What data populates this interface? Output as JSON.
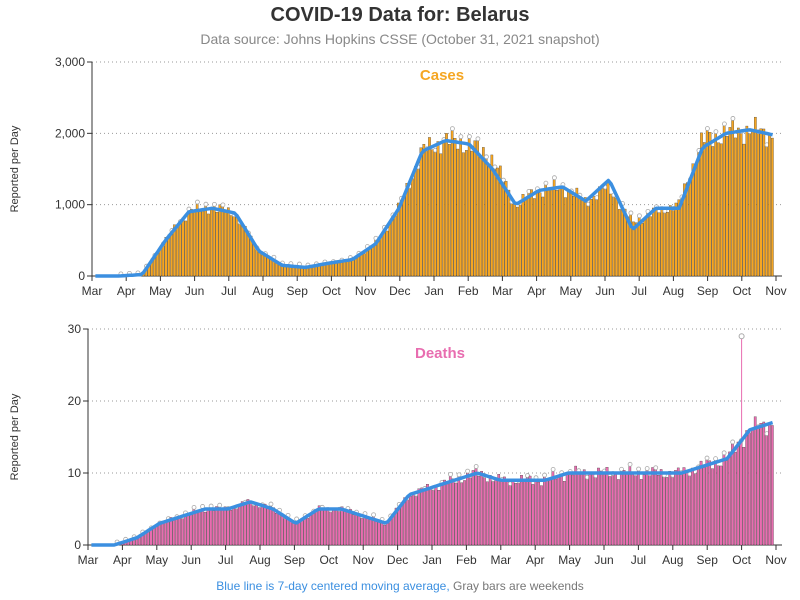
{
  "title": "COVID-19 Data for: Belarus",
  "subtitle": "Data source: Johns Hopkins CSSE (October 31, 2021 snapshot)",
  "footnote": {
    "blue_text": "Blue line is 7-day centered moving average,",
    "gray_text": "Gray bars are weekends"
  },
  "colors": {
    "cases_bar": "#f5a623",
    "deaths_bar": "#e86db0",
    "moving_avg": "#3b8fe0",
    "bar_outline": "#333333",
    "marker": "#aaaaaa"
  },
  "chart_data": [
    {
      "type": "bar",
      "name": "cases",
      "panel_title": "Cases",
      "ylabel": "Reported per Day",
      "ylim": [
        0,
        3000
      ],
      "yticks": [
        0,
        1000,
        2000,
        3000
      ],
      "ytick_labels": [
        "0",
        "1,000",
        "2,000",
        "3,000"
      ],
      "grid": true,
      "months": [
        "Mar",
        "Apr",
        "May",
        "Jun",
        "Jul",
        "Aug",
        "Sep",
        "Oct",
        "Nov",
        "Dec",
        "Jan",
        "Feb",
        "Mar",
        "Apr",
        "May",
        "Jun",
        "Jul",
        "Aug",
        "Sep",
        "Oct",
        "Nov"
      ],
      "monthly_values": [
        0,
        0,
        20,
        500,
        900,
        960,
        880,
        350,
        150,
        120,
        180,
        230,
        450,
        950,
        1750,
        1900,
        1850,
        1650,
        1000,
        1200,
        1250,
        1050,
        1250,
        750,
        900,
        1000,
        1900,
        2000,
        2050,
        1980
      ],
      "moving_avg": [
        0,
        0,
        20,
        500,
        900,
        950,
        880,
        350,
        150,
        120,
        180,
        230,
        450,
        950,
        1750,
        1900,
        1850,
        1500,
        1000,
        1200,
        1250,
        1050,
        1350,
        650,
        950,
        950,
        1800,
        2000,
        2050,
        1980
      ]
    },
    {
      "type": "bar",
      "name": "deaths",
      "panel_title": "Deaths",
      "ylabel": "Reported per Day",
      "ylim": [
        0,
        30
      ],
      "yticks": [
        0,
        10,
        20,
        30
      ],
      "ytick_labels": [
        "0",
        "10",
        "20",
        "30"
      ],
      "grid": true,
      "months": [
        "Mar",
        "Apr",
        "May",
        "Jun",
        "Jul",
        "Aug",
        "Sep",
        "Oct",
        "Nov",
        "Dec",
        "Jan",
        "Feb",
        "Mar",
        "Apr",
        "May",
        "Jun",
        "Jul",
        "Aug",
        "Sep",
        "Oct",
        "Nov"
      ],
      "monthly_values": [
        0,
        0,
        1,
        3,
        4,
        5,
        5,
        6,
        5,
        3,
        5,
        5,
        4,
        3,
        7,
        8,
        9,
        10,
        9,
        9,
        9,
        10,
        10,
        10,
        10,
        10,
        10,
        11,
        12,
        16,
        17
      ],
      "moving_avg": [
        0,
        0,
        1,
        3,
        4,
        5,
        5,
        6,
        5,
        3,
        5,
        5,
        4,
        3,
        7,
        8,
        9,
        10,
        9,
        9,
        9,
        10,
        10,
        10,
        10,
        10,
        10,
        11,
        12,
        16,
        17
      ],
      "peak": {
        "month_index": 19,
        "value": 29
      }
    }
  ]
}
